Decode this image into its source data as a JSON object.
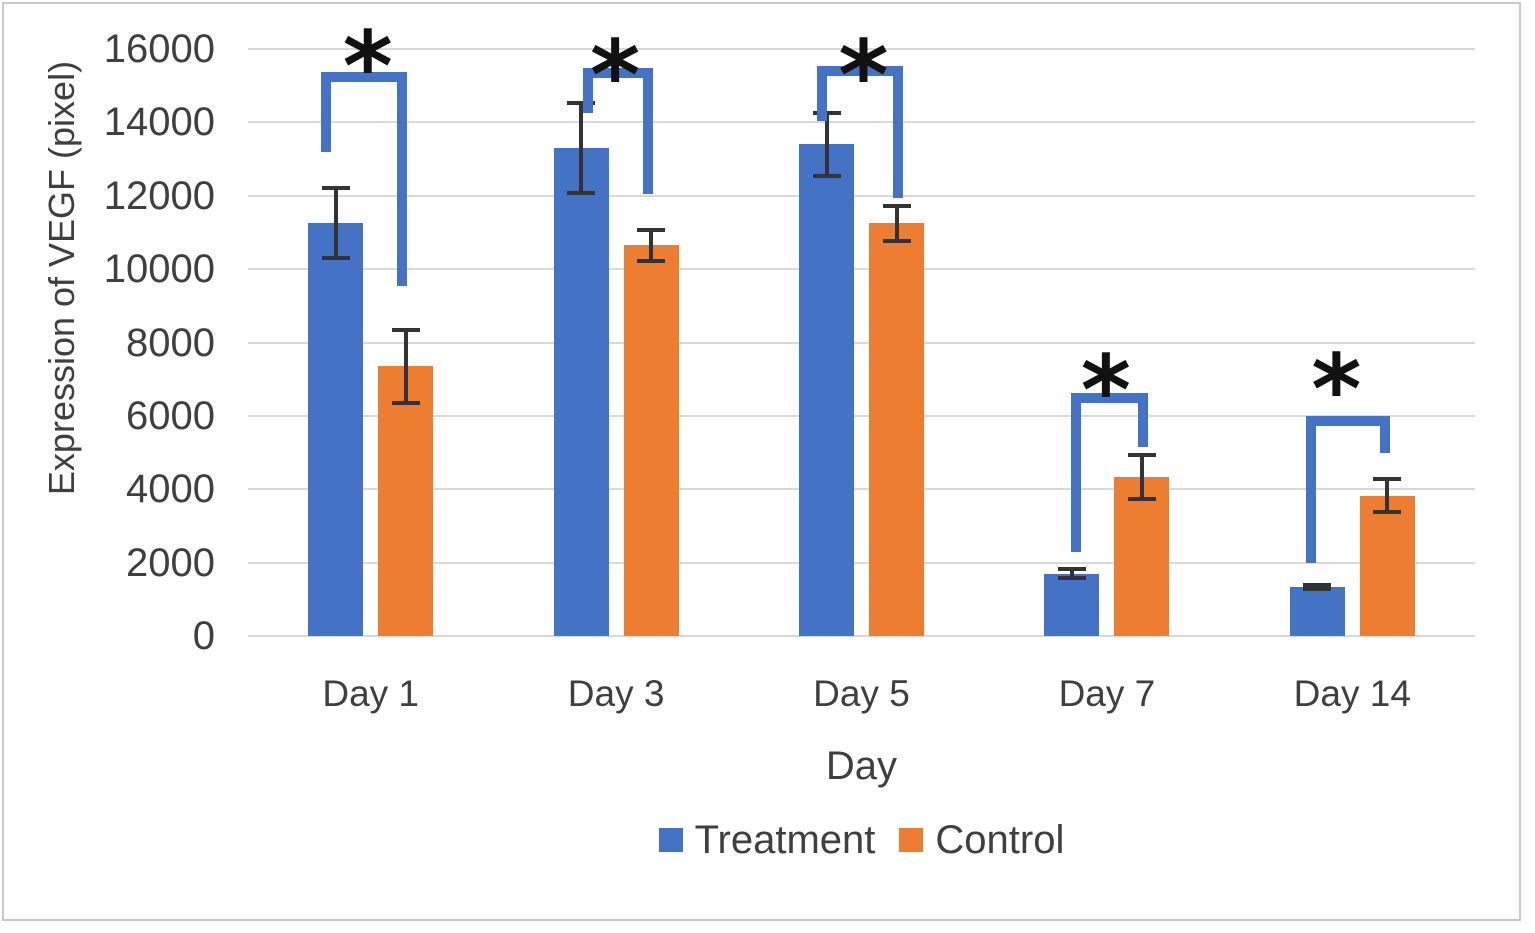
{
  "figure": {
    "background": "#ffffff",
    "border_color": "#c9c9c9"
  },
  "chart_data": {
    "type": "bar",
    "title": "",
    "xlabel": "Day",
    "ylabel": "Expression of VEGF (pixel)",
    "categories": [
      "Day 1",
      "Day 3",
      "Day 5",
      "Day 7",
      "Day 14"
    ],
    "series": [
      {
        "name": "Treatment",
        "color": "#4472C4",
        "values": [
          11250,
          13300,
          13400,
          1700,
          1330
        ],
        "errors": [
          950,
          1220,
          870,
          130,
          60
        ]
      },
      {
        "name": "Control",
        "color": "#ED7D31",
        "values": [
          7350,
          10650,
          11250,
          4330,
          3830
        ],
        "errors": [
          1000,
          430,
          480,
          600,
          440
        ]
      }
    ],
    "ylim": [
      0,
      16000
    ],
    "ytick_step": 2000,
    "yticks": [
      "0",
      "2000",
      "4000",
      "6000",
      "8000",
      "10000",
      "12000",
      "14000",
      "16000"
    ],
    "grid": "horizontal",
    "gridline_color": "#d9d9d9",
    "axis_text_color": "#3f3f3f",
    "error_bar_color": "#333333",
    "legend_position": "bottom",
    "annotations": {
      "significance_marker": "*",
      "bracket_color": "#4472C4",
      "brackets": [
        {
          "category_index": 0,
          "top_value": 15250,
          "left_leg_bottom_value": 13200,
          "right_leg_bottom_value": 9550,
          "left_x_offset": -45,
          "right_x_offset": 31,
          "asterisk_value": 15900,
          "asterisk_x_offset": -3
        },
        {
          "category_index": 1,
          "top_value": 15350,
          "left_leg_bottom_value": 14250,
          "right_leg_bottom_value": 12050,
          "left_x_offset": -28,
          "right_x_offset": 32,
          "asterisk_value": 15650,
          "asterisk_x_offset": -1
        },
        {
          "category_index": 2,
          "top_value": 15400,
          "left_leg_bottom_value": 14050,
          "right_leg_bottom_value": 11950,
          "left_x_offset": -40,
          "right_x_offset": 36,
          "asterisk_value": 15650,
          "asterisk_x_offset": 2
        },
        {
          "category_index": 3,
          "top_value": 6500,
          "left_leg_bottom_value": 2300,
          "right_leg_bottom_value": 5150,
          "left_x_offset": -31,
          "right_x_offset": 36,
          "asterisk_value": 7050,
          "asterisk_x_offset": -1
        },
        {
          "category_index": 4,
          "top_value": 5850,
          "left_leg_bottom_value": 2000,
          "right_leg_bottom_value": 5000,
          "left_x_offset": -41,
          "right_x_offset": 33,
          "asterisk_value": 7100,
          "asterisk_x_offset": -16
        }
      ]
    }
  }
}
